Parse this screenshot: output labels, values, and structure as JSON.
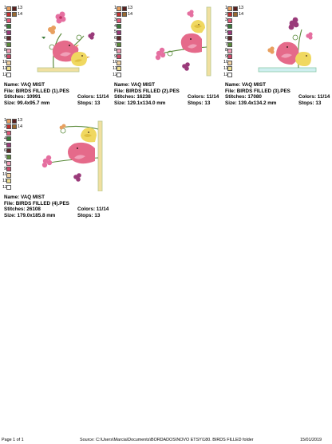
{
  "designs": [
    {
      "name_label": "Name: VAQ MIST",
      "file_label": "File: BIRDS FILLED (1).PES",
      "stitches_label": "Stitches: 10991",
      "colors_label": "Colors: 11/14",
      "size_label": "Size: 99.4x95.7 mm",
      "stops_label": "Stops: 13"
    },
    {
      "name_label": "Name: VAQ MIST",
      "file_label": "File: BIRDS FILLED (2).PES",
      "stitches_label": "Stitches: 16238",
      "colors_label": "Colors: 11/14",
      "size_label": "Size: 129.1x134.0 mm",
      "stops_label": "Stops: 13"
    },
    {
      "name_label": "Name: VAQ MIST",
      "file_label": "File: BIRDS FILLED (3).PES",
      "stitches_label": "Stitches: 17080",
      "colors_label": "Colors: 11/14",
      "size_label": "Size: 139.4x134.2 mm",
      "stops_label": "Stops: 13"
    },
    {
      "name_label": "Name: VAQ MIST",
      "file_label": "File: BIRDS FILLED (4).PES",
      "stitches_label": "Stitches: 26108",
      "colors_label": "Colors: 11/14",
      "size_label": "Size: 179.0x185.8 mm",
      "stops_label": "Stops: 13"
    }
  ],
  "palette_rows": [
    {
      "left_num": "1",
      "right_num": "13",
      "colors": [
        "#e8a060",
        "#5a2020"
      ]
    },
    {
      "left_num": "2",
      "right_num": "14",
      "colors": [
        "#c03030",
        "#9a6a30"
      ]
    },
    {
      "left_num": "3",
      "right_num": "",
      "colors": [
        "#e05a7a"
      ]
    },
    {
      "left_num": "4",
      "right_num": "",
      "colors": [
        "#3a7a3a"
      ]
    },
    {
      "left_num": "5",
      "right_num": "",
      "colors": [
        "#9a3a7a"
      ]
    },
    {
      "left_num": "6",
      "right_num": "",
      "colors": [
        "#5a2a2a"
      ]
    },
    {
      "left_num": "7",
      "right_num": "",
      "colors": [
        "#5a8a3a"
      ]
    },
    {
      "left_num": "8",
      "right_num": "",
      "colors": [
        "#f0a0b8"
      ]
    },
    {
      "left_num": "9",
      "right_num": "",
      "colors": [
        "#d04a6a"
      ]
    },
    {
      "left_num": "10",
      "right_num": "",
      "colors": [
        "#f0d0a0"
      ]
    },
    {
      "left_num": "11",
      "right_num": "",
      "colors": [
        "#f0e090"
      ]
    },
    {
      "left_num": "12",
      "right_num": "",
      "colors": [
        "#ffffff"
      ]
    }
  ],
  "footer": {
    "page": "Page 1 of 1",
    "source": "Source: C:\\Users\\Marcia\\Documents\\BORDADOS\\NOVO ETSY\\180. BIRDS FILLED folder",
    "date": "15/01/2019"
  }
}
